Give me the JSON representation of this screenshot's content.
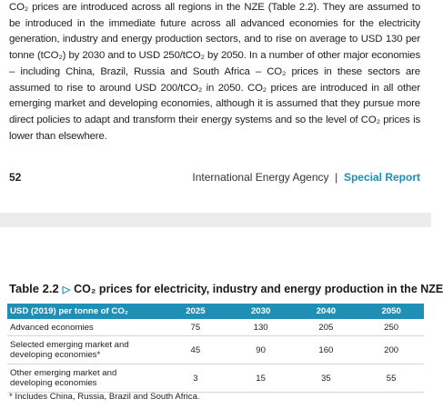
{
  "body": {
    "paragraph": "CO₂ prices are introduced across all regions in the NZE (Table 2.2). They are assumed to be introduced in the immediate future across all advanced economies for the electricity generation, industry and energy production sectors, and to rise on average to USD 130 per tonne (tCO₂) by 2030 and to USD 250/tCO₂ by 2050. In a number of other major economies – including China, Brazil, Russia and South Africa – CO₂ prices in these sectors are assumed to rise to around USD 200/tCO₂ in 2050. CO₂ prices are introduced in all other emerging market and developing economies, although it is assumed that they pursue more direct policies to adapt and transform their energy systems and so the level of CO₂ prices is lower than elsewhere."
  },
  "footer": {
    "page_number": "52",
    "publisher": "International Energy Agency",
    "separator": "|",
    "report": "Special Report"
  },
  "table": {
    "label": "Table 2.2",
    "title": "CO₂ prices for electricity, industry and energy production in the NZE",
    "header": [
      "USD (2019) per tonne of CO₂",
      "2025",
      "2030",
      "2040",
      "2050"
    ],
    "rows": [
      [
        "Advanced economies",
        75,
        130,
        205,
        250
      ],
      [
        "Selected emerging market and developing economies*",
        45,
        90,
        160,
        200
      ],
      [
        "Other emerging market and developing economies",
        3,
        15,
        35,
        55
      ]
    ],
    "footnote": "* Includes China, Russia, Brazil and South Africa."
  }
}
